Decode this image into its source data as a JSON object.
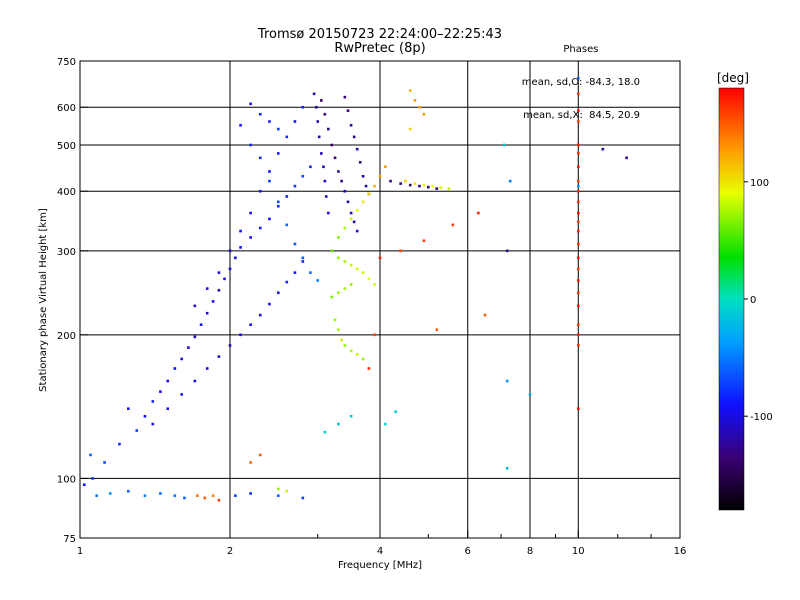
{
  "title_line1": "Tromsø 20150723 22:24:00–22:25:43",
  "title_line2": "RwPretec (8p)",
  "stats": {
    "header": "Phases",
    "line1": "mean, sd,O: -84.3, 18.0",
    "line2": "mean, sd,X:  84.5, 20.9"
  },
  "colorbar": {
    "label": "[deg]",
    "range": [
      -180,
      180
    ],
    "ticks": [
      {
        "value": 100,
        "label": "100"
      },
      {
        "value": 0,
        "label": "0"
      },
      {
        "value": -100,
        "label": "-100"
      }
    ]
  },
  "chart_data": {
    "type": "scatter",
    "xlabel": "Frequency [MHz]",
    "ylabel": "Stationary phase Virtual Height [km]",
    "xscale": "log",
    "yscale": "log",
    "xlim": [
      1,
      16
    ],
    "ylim": [
      75,
      750
    ],
    "grid": true,
    "x_ticks": [
      {
        "v": 1,
        "label": "1"
      },
      {
        "v": 2,
        "label": "2"
      },
      {
        "v": 4,
        "label": "4"
      },
      {
        "v": 6,
        "label": "6"
      },
      {
        "v": 8,
        "label": "8"
      },
      {
        "v": 10,
        "label": "10"
      },
      {
        "v": 16,
        "label": "16"
      }
    ],
    "y_ticks": [
      {
        "v": 75,
        "label": "75"
      },
      {
        "v": 100,
        "label": "100"
      },
      {
        "v": 200,
        "label": "200"
      },
      {
        "v": 300,
        "label": "300"
      },
      {
        "v": 400,
        "label": "400"
      },
      {
        "v": 500,
        "label": "500"
      },
      {
        "v": 600,
        "label": "600"
      },
      {
        "v": 750,
        "label": "750"
      }
    ],
    "x_minor": [
      3,
      5,
      7,
      9,
      12,
      14
    ],
    "color_quantity": "phase [deg]",
    "series": [
      {
        "group": "background",
        "points": [
          [
            1.05,
            112,
            -60
          ],
          [
            1.12,
            108,
            -70
          ],
          [
            1.2,
            118,
            -80
          ],
          [
            1.3,
            126,
            -75
          ],
          [
            1.35,
            135,
            -90
          ],
          [
            1.4,
            145,
            -85
          ],
          [
            1.45,
            152,
            -95
          ],
          [
            1.5,
            160,
            -100
          ],
          [
            1.55,
            170,
            -90
          ],
          [
            1.6,
            178,
            -100
          ],
          [
            1.65,
            188,
            -105
          ],
          [
            1.7,
            198,
            -110
          ],
          [
            1.75,
            210,
            -95
          ],
          [
            1.8,
            222,
            -105
          ],
          [
            1.85,
            235,
            -100
          ],
          [
            1.9,
            248,
            -110
          ],
          [
            1.95,
            262,
            -100
          ],
          [
            2.0,
            275,
            -95
          ],
          [
            2.05,
            290,
            -100
          ],
          [
            2.1,
            305,
            -90
          ],
          [
            2.2,
            320,
            -95
          ],
          [
            2.3,
            335,
            -85
          ],
          [
            2.4,
            350,
            -90
          ],
          [
            2.5,
            372,
            -80
          ],
          [
            2.6,
            390,
            -85
          ],
          [
            2.7,
            410,
            -75
          ],
          [
            2.8,
            430,
            -70
          ],
          [
            2.9,
            450,
            -80
          ],
          [
            1.25,
            140,
            -90
          ],
          [
            1.4,
            130,
            -100
          ],
          [
            1.5,
            140,
            -90
          ],
          [
            1.6,
            150,
            -95
          ],
          [
            1.7,
            160,
            -100
          ],
          [
            1.8,
            170,
            -105
          ],
          [
            1.9,
            180,
            -100
          ],
          [
            2.0,
            190,
            -110
          ],
          [
            2.1,
            200,
            -100
          ],
          [
            2.2,
            210,
            -95
          ],
          [
            2.3,
            220,
            -100
          ],
          [
            2.4,
            232,
            -90
          ],
          [
            2.5,
            245,
            -95
          ],
          [
            2.6,
            258,
            -85
          ],
          [
            2.7,
            270,
            -90
          ],
          [
            2.8,
            285,
            -85
          ],
          [
            1.7,
            230,
            -110
          ],
          [
            1.8,
            250,
            -100
          ],
          [
            1.9,
            270,
            -105
          ],
          [
            2.0,
            300,
            -100
          ],
          [
            2.1,
            330,
            -95
          ],
          [
            2.2,
            360,
            -100
          ],
          [
            2.3,
            400,
            -95
          ],
          [
            2.4,
            440,
            -90
          ],
          [
            2.5,
            480,
            -85
          ],
          [
            2.6,
            520,
            -80
          ],
          [
            2.7,
            560,
            -90
          ],
          [
            2.8,
            600,
            -85
          ],
          [
            2.2,
            610,
            -90
          ],
          [
            2.3,
            580,
            -80
          ],
          [
            2.4,
            560,
            -85
          ],
          [
            2.5,
            540,
            -75
          ],
          [
            2.1,
            550,
            -90
          ],
          [
            2.2,
            500,
            -85
          ],
          [
            2.3,
            470,
            -80
          ],
          [
            2.4,
            420,
            -75
          ],
          [
            2.5,
            380,
            -70
          ],
          [
            2.6,
            340,
            -60
          ],
          [
            2.7,
            310,
            -65
          ],
          [
            2.8,
            290,
            -60
          ],
          [
            2.9,
            270,
            -55
          ],
          [
            3.0,
            260,
            -50
          ]
        ]
      },
      {
        "group": "o_trace",
        "points": [
          [
            3.05,
            620,
            -140
          ],
          [
            3.1,
            580,
            -135
          ],
          [
            3.15,
            540,
            -130
          ],
          [
            3.2,
            500,
            -140
          ],
          [
            3.25,
            470,
            -135
          ],
          [
            3.3,
            440,
            -125
          ],
          [
            3.35,
            420,
            -130
          ],
          [
            3.4,
            400,
            -120
          ],
          [
            3.45,
            380,
            -125
          ],
          [
            3.5,
            360,
            -115
          ],
          [
            3.55,
            345,
            -120
          ],
          [
            3.6,
            330,
            -110
          ],
          [
            3.4,
            630,
            -135
          ],
          [
            3.45,
            590,
            -130
          ],
          [
            3.5,
            550,
            -125
          ],
          [
            3.55,
            520,
            -130
          ],
          [
            3.6,
            490,
            -120
          ],
          [
            3.65,
            460,
            -125
          ],
          [
            3.7,
            430,
            -115
          ],
          [
            3.75,
            410,
            -120
          ],
          [
            3.8,
            395,
            -110
          ],
          [
            2.95,
            640,
            -120
          ],
          [
            2.98,
            600,
            -125
          ],
          [
            3.0,
            560,
            -115
          ],
          [
            3.02,
            520,
            -120
          ],
          [
            3.05,
            480,
            -115
          ],
          [
            3.08,
            450,
            -110
          ],
          [
            3.1,
            420,
            -105
          ],
          [
            3.12,
            390,
            -110
          ],
          [
            3.15,
            360,
            -100
          ],
          [
            4.2,
            420,
            -130
          ],
          [
            4.4,
            415,
            -135
          ],
          [
            4.6,
            412,
            -140
          ],
          [
            4.8,
            410,
            -130
          ],
          [
            5.0,
            408,
            -135
          ],
          [
            5.2,
            405,
            -140
          ]
        ]
      },
      {
        "group": "x_trace",
        "points": [
          [
            3.2,
            300,
            60
          ],
          [
            3.3,
            290,
            70
          ],
          [
            3.4,
            285,
            75
          ],
          [
            3.5,
            280,
            80
          ],
          [
            3.6,
            275,
            85
          ],
          [
            3.7,
            270,
            80
          ],
          [
            3.8,
            262,
            90
          ],
          [
            3.9,
            255,
            85
          ],
          [
            3.3,
            320,
            65
          ],
          [
            3.4,
            335,
            75
          ],
          [
            3.5,
            350,
            80
          ],
          [
            3.6,
            365,
            90
          ],
          [
            3.7,
            380,
            100
          ],
          [
            3.8,
            395,
            110
          ],
          [
            3.9,
            410,
            120
          ],
          [
            4.0,
            430,
            125
          ],
          [
            4.1,
            450,
            130
          ],
          [
            3.25,
            215,
            70
          ],
          [
            3.3,
            205,
            75
          ],
          [
            3.35,
            195,
            80
          ],
          [
            3.4,
            190,
            70
          ],
          [
            3.5,
            185,
            75
          ],
          [
            3.6,
            182,
            80
          ],
          [
            3.7,
            178,
            70
          ],
          [
            3.2,
            240,
            65
          ],
          [
            3.3,
            245,
            70
          ],
          [
            3.4,
            250,
            75
          ],
          [
            3.5,
            255,
            70
          ],
          [
            4.5,
            420,
            110
          ],
          [
            4.7,
            415,
            100
          ],
          [
            4.9,
            412,
            95
          ],
          [
            5.1,
            410,
            90
          ],
          [
            5.3,
            407,
            85
          ],
          [
            5.5,
            405,
            80
          ],
          [
            4.6,
            650,
            120
          ],
          [
            4.7,
            620,
            130
          ],
          [
            4.8,
            600,
            125
          ],
          [
            4.9,
            580,
            130
          ],
          [
            4.6,
            540,
            110
          ]
        ]
      },
      {
        "group": "misc",
        "points": [
          [
            1.08,
            92,
            -50
          ],
          [
            1.15,
            93,
            -40
          ],
          [
            1.25,
            94,
            -60
          ],
          [
            1.35,
            92,
            -45
          ],
          [
            1.45,
            93,
            -55
          ],
          [
            1.55,
            92,
            -50
          ],
          [
            1.62,
            91,
            -60
          ],
          [
            1.72,
            92,
            140
          ],
          [
            1.78,
            91,
            150
          ],
          [
            1.85,
            92,
            135
          ],
          [
            1.9,
            90,
            160
          ],
          [
            2.05,
            92,
            -70
          ],
          [
            2.2,
            93,
            -80
          ],
          [
            2.5,
            92,
            -60
          ],
          [
            2.8,
            91,
            -75
          ],
          [
            2.2,
            108,
            145
          ],
          [
            2.3,
            112,
            150
          ],
          [
            2.5,
            95,
            70
          ],
          [
            2.6,
            94,
            80
          ],
          [
            3.1,
            125,
            -10
          ],
          [
            3.3,
            130,
            -20
          ],
          [
            3.5,
            135,
            -15
          ],
          [
            4.1,
            130,
            -5
          ],
          [
            4.3,
            138,
            -10
          ],
          [
            1.02,
            97,
            -90
          ],
          [
            1.06,
            100,
            -80
          ],
          [
            7.2,
            105,
            -20
          ],
          [
            7.2,
            160,
            -40
          ],
          [
            7.2,
            300,
            -120
          ],
          [
            7.3,
            420,
            -50
          ],
          [
            7.1,
            500,
            -10
          ],
          [
            6.5,
            220,
            150
          ],
          [
            6.3,
            360,
            170
          ],
          [
            5.6,
            340,
            160
          ],
          [
            5.2,
            205,
            150
          ],
          [
            4.9,
            315,
            160
          ],
          [
            4.4,
            300,
            155
          ],
          [
            4.0,
            290,
            170
          ],
          [
            3.9,
            200,
            160
          ],
          [
            3.8,
            170,
            165
          ],
          [
            8.0,
            150,
            -30
          ],
          [
            12.5,
            470,
            -130
          ],
          [
            11.2,
            490,
            -120
          ],
          [
            10.0,
            140,
            175
          ],
          [
            10.0,
            190,
            165
          ],
          [
            10.0,
            200,
            170
          ],
          [
            10.0,
            210,
            160
          ],
          [
            10.0,
            230,
            175
          ],
          [
            10.0,
            245,
            165
          ],
          [
            10.0,
            260,
            170
          ],
          [
            10.0,
            275,
            160
          ],
          [
            10.0,
            290,
            175
          ],
          [
            10.0,
            310,
            165
          ],
          [
            10.0,
            330,
            170
          ],
          [
            10.0,
            345,
            160
          ],
          [
            10.0,
            360,
            175
          ],
          [
            10.0,
            380,
            165
          ],
          [
            10.0,
            400,
            170
          ],
          [
            10.0,
            420,
            160
          ],
          [
            10.0,
            450,
            175
          ],
          [
            10.0,
            480,
            165
          ],
          [
            10.0,
            500,
            170
          ],
          [
            10.0,
            560,
            160
          ],
          [
            10.0,
            590,
            175
          ],
          [
            10.0,
            640,
            165
          ],
          [
            10.0,
            410,
            -40
          ],
          [
            10.0,
            690,
            -60
          ]
        ]
      }
    ]
  }
}
